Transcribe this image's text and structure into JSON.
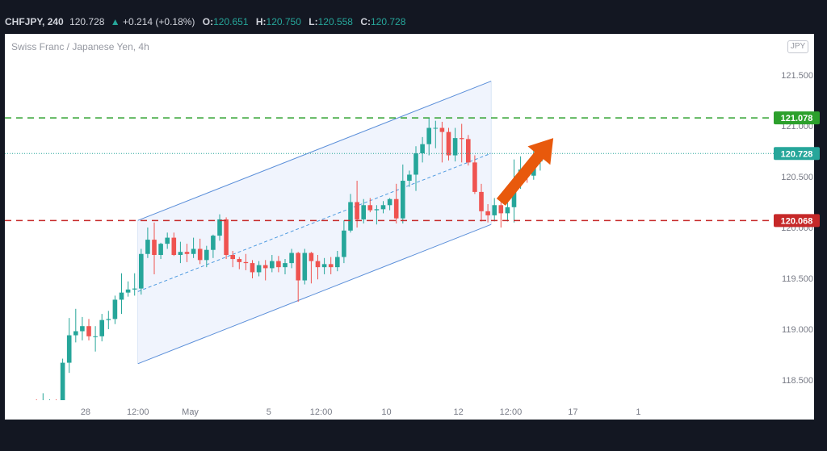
{
  "header": {
    "symbol": "CHFJPY",
    "interval": "240",
    "last": "120.728",
    "change_arrow": "▲",
    "change": "+0.214 (+0.18%)",
    "o_label": "O:",
    "o": "120.651",
    "h_label": "H:",
    "h": "120.750",
    "l_label": "L:",
    "l": "120.558",
    "c_label": "C:",
    "c": "120.728"
  },
  "subtitle": "Swiss Franc / Japanese Yen, 4h",
  "currency_badge": "JPY",
  "colors": {
    "up": "#26a69a",
    "down": "#ef5350",
    "resistance": "#2ca02c",
    "support": "#c62828",
    "price_line": "#26a69a",
    "channel": "#5b8fd9",
    "arrow": "#e8590c"
  },
  "chart_data": {
    "type": "candlestick",
    "title": "",
    "ylim": [
      118.23,
      121.7
    ],
    "yticks": [
      "121.500",
      "121.000",
      "120.500",
      "120.000",
      "119.500",
      "119.000",
      "118.500"
    ],
    "xticks": [
      {
        "label": "28",
        "bar": 9.5
      },
      {
        "label": "12:00",
        "bar": 17.5
      },
      {
        "label": "May",
        "bar": 25.5
      },
      {
        "label": "5",
        "bar": 37.5
      },
      {
        "label": "12:00",
        "bar": 45.5
      },
      {
        "label": "10",
        "bar": 55.5
      },
      {
        "label": "12",
        "bar": 66.5
      },
      {
        "label": "12:00",
        "bar": 74.5
      },
      {
        "label": "17",
        "bar": 84
      },
      {
        "label": "1",
        "bar": 94
      }
    ],
    "candles": [
      [
        118.26,
        118.28,
        118.24,
        118.27
      ],
      [
        118.27,
        118.3,
        118.25,
        118.29
      ],
      [
        118.29,
        118.31,
        118.26,
        118.27
      ],
      [
        118.27,
        118.37,
        118.22,
        118.28
      ],
      [
        118.28,
        118.31,
        118.25,
        118.3
      ],
      [
        118.3,
        118.31,
        118.22,
        118.24
      ],
      [
        118.24,
        118.71,
        118.22,
        118.67
      ],
      [
        118.67,
        119.11,
        118.57,
        118.94
      ],
      [
        118.94,
        119.2,
        118.87,
        118.98
      ],
      [
        118.98,
        119.12,
        118.89,
        119.03
      ],
      [
        119.03,
        119.1,
        118.89,
        118.93
      ],
      [
        118.93,
        119.03,
        118.78,
        118.93
      ],
      [
        118.93,
        119.15,
        118.88,
        119.09
      ],
      [
        119.09,
        119.18,
        119.0,
        119.1
      ],
      [
        119.1,
        119.33,
        119.05,
        119.29
      ],
      [
        119.29,
        119.55,
        119.15,
        119.36
      ],
      [
        119.36,
        119.47,
        119.32,
        119.39
      ],
      [
        119.39,
        119.55,
        119.33,
        119.4
      ],
      [
        119.4,
        119.79,
        119.34,
        119.74
      ],
      [
        119.74,
        120.0,
        119.7,
        119.88
      ],
      [
        119.88,
        120.05,
        119.54,
        119.73
      ],
      [
        119.73,
        119.85,
        119.69,
        119.84
      ],
      [
        119.84,
        119.95,
        119.79,
        119.9
      ],
      [
        119.9,
        119.95,
        119.72,
        119.73
      ],
      [
        119.73,
        119.86,
        119.65,
        119.76
      ],
      [
        119.76,
        119.84,
        119.66,
        119.74
      ],
      [
        119.74,
        119.9,
        119.7,
        119.79
      ],
      [
        119.79,
        119.89,
        119.64,
        119.68
      ],
      [
        119.68,
        119.82,
        119.61,
        119.78
      ],
      [
        119.78,
        119.93,
        119.7,
        119.92
      ],
      [
        119.92,
        120.13,
        119.87,
        120.08
      ],
      [
        120.08,
        120.1,
        119.69,
        119.73
      ],
      [
        119.73,
        119.77,
        119.61,
        119.69
      ],
      [
        119.69,
        119.71,
        119.59,
        119.66
      ],
      [
        119.66,
        119.74,
        119.58,
        119.65
      ],
      [
        119.65,
        119.68,
        119.5,
        119.56
      ],
      [
        119.56,
        119.67,
        119.52,
        119.63
      ],
      [
        119.63,
        119.68,
        119.48,
        119.6
      ],
      [
        119.6,
        119.73,
        119.56,
        119.67
      ],
      [
        119.67,
        119.72,
        119.56,
        119.61
      ],
      [
        119.61,
        119.69,
        119.54,
        119.65
      ],
      [
        119.65,
        119.79,
        119.6,
        119.75
      ],
      [
        119.75,
        119.76,
        119.27,
        119.48
      ],
      [
        119.48,
        119.79,
        119.44,
        119.75
      ],
      [
        119.75,
        119.76,
        119.45,
        119.67
      ],
      [
        119.67,
        119.73,
        119.49,
        119.61
      ],
      [
        119.61,
        119.7,
        119.54,
        119.64
      ],
      [
        119.64,
        119.71,
        119.54,
        119.61
      ],
      [
        119.61,
        119.77,
        119.57,
        119.71
      ],
      [
        119.71,
        120.07,
        119.65,
        119.97
      ],
      [
        119.97,
        120.33,
        119.95,
        120.25
      ],
      [
        120.25,
        120.46,
        120.0,
        120.08
      ],
      [
        120.08,
        120.28,
        120.04,
        120.22
      ],
      [
        120.22,
        120.29,
        120.15,
        120.17
      ],
      [
        120.17,
        120.22,
        120.03,
        120.18
      ],
      [
        120.18,
        120.26,
        120.14,
        120.22
      ],
      [
        120.22,
        120.29,
        120.17,
        120.28
      ],
      [
        120.28,
        120.43,
        120.04,
        120.09
      ],
      [
        120.09,
        120.62,
        120.04,
        120.46
      ],
      [
        120.46,
        120.56,
        120.4,
        120.52
      ],
      [
        120.52,
        120.8,
        120.36,
        120.73
      ],
      [
        120.73,
        120.89,
        120.64,
        120.82
      ],
      [
        120.82,
        121.08,
        120.71,
        120.98
      ],
      [
        120.98,
        121.05,
        120.78,
        120.98
      ],
      [
        120.98,
        121.04,
        120.64,
        120.94
      ],
      [
        120.94,
        120.98,
        120.66,
        120.71
      ],
      [
        120.71,
        120.98,
        120.65,
        120.88
      ],
      [
        120.88,
        121.02,
        120.64,
        120.87
      ],
      [
        120.87,
        120.91,
        120.61,
        120.64
      ],
      [
        120.64,
        120.71,
        120.33,
        120.35
      ],
      [
        120.35,
        120.43,
        120.06,
        120.16
      ],
      [
        120.16,
        120.23,
        120.05,
        120.12
      ],
      [
        120.12,
        120.29,
        120.06,
        120.22
      ],
      [
        120.22,
        120.31,
        120.0,
        120.14
      ],
      [
        120.14,
        120.36,
        120.06,
        120.2
      ],
      [
        120.2,
        120.67,
        120.05,
        120.44
      ],
      [
        120.44,
        120.7,
        120.38,
        120.57
      ],
      [
        120.57,
        120.61,
        120.44,
        120.51
      ],
      [
        120.51,
        120.79,
        120.47,
        120.65
      ],
      [
        120.65,
        120.75,
        120.56,
        120.73
      ]
    ],
    "channel": {
      "upper": [
        {
          "bar": 17.5,
          "y": 120.07
        },
        {
          "bar": 71.5,
          "y": 121.44
        }
      ],
      "lower": [
        {
          "bar": 17.5,
          "y": 118.66
        },
        {
          "bar": 71.5,
          "y": 120.03
        }
      ],
      "mid": [
        {
          "bar": 17.5,
          "y": 119.37
        },
        {
          "bar": 71.5,
          "y": 120.73
        }
      ]
    },
    "levels": [
      {
        "name": "resistance",
        "value": 121.078,
        "label": "121.078",
        "color": "#2ca02c",
        "style": "dashed"
      },
      {
        "name": "support",
        "value": 120.068,
        "label": "120.068",
        "color": "#c62828",
        "style": "dashed"
      },
      {
        "name": "last-price",
        "value": 120.728,
        "label": "120.728",
        "color": "#26a69a",
        "style": "dotted"
      }
    ],
    "arrow": {
      "from": {
        "bar": 73.0,
        "y": 120.25
      },
      "to": {
        "bar": 81.0,
        "y": 120.88
      },
      "color": "#e8590c"
    }
  }
}
